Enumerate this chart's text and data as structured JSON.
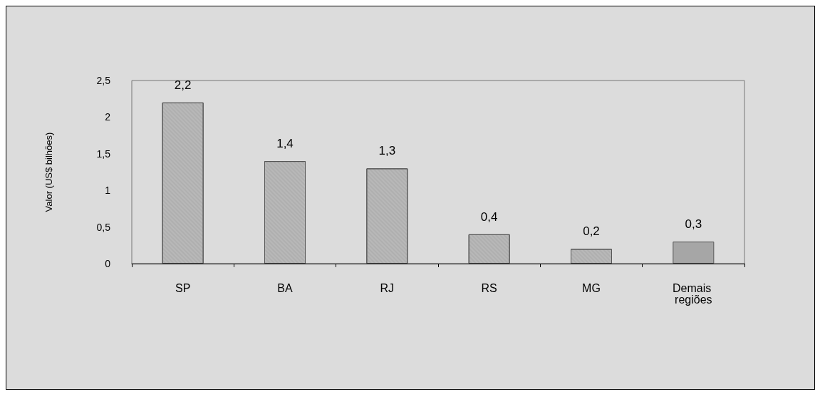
{
  "chart_data": {
    "type": "bar",
    "ylabel": "Valor (US$ bilhões)",
    "categories": [
      "SP",
      "BA",
      "RJ",
      "RS",
      "MG",
      "Demais regiões"
    ],
    "values": [
      2.2,
      1.4,
      1.3,
      0.4,
      0.2,
      0.3
    ],
    "colors": [
      "#b8b8b8",
      "#b8b8b8",
      "#b8b8b8",
      "#b8b8b8",
      "#b8b8b8",
      "#a6a6a6"
    ],
    "value_labels": [
      "2,2",
      "1,4",
      "1,3",
      "0,4",
      "0,2",
      "0,3"
    ],
    "ylim": [
      0,
      2.5
    ],
    "yticks": [
      0,
      {
        "value": 0.5,
        "label": "0,5"
      },
      1,
      {
        "value": 1.5,
        "label": "1,5"
      },
      2,
      {
        "value": 2.5,
        "label": "2,5"
      }
    ],
    "grid": false
  }
}
